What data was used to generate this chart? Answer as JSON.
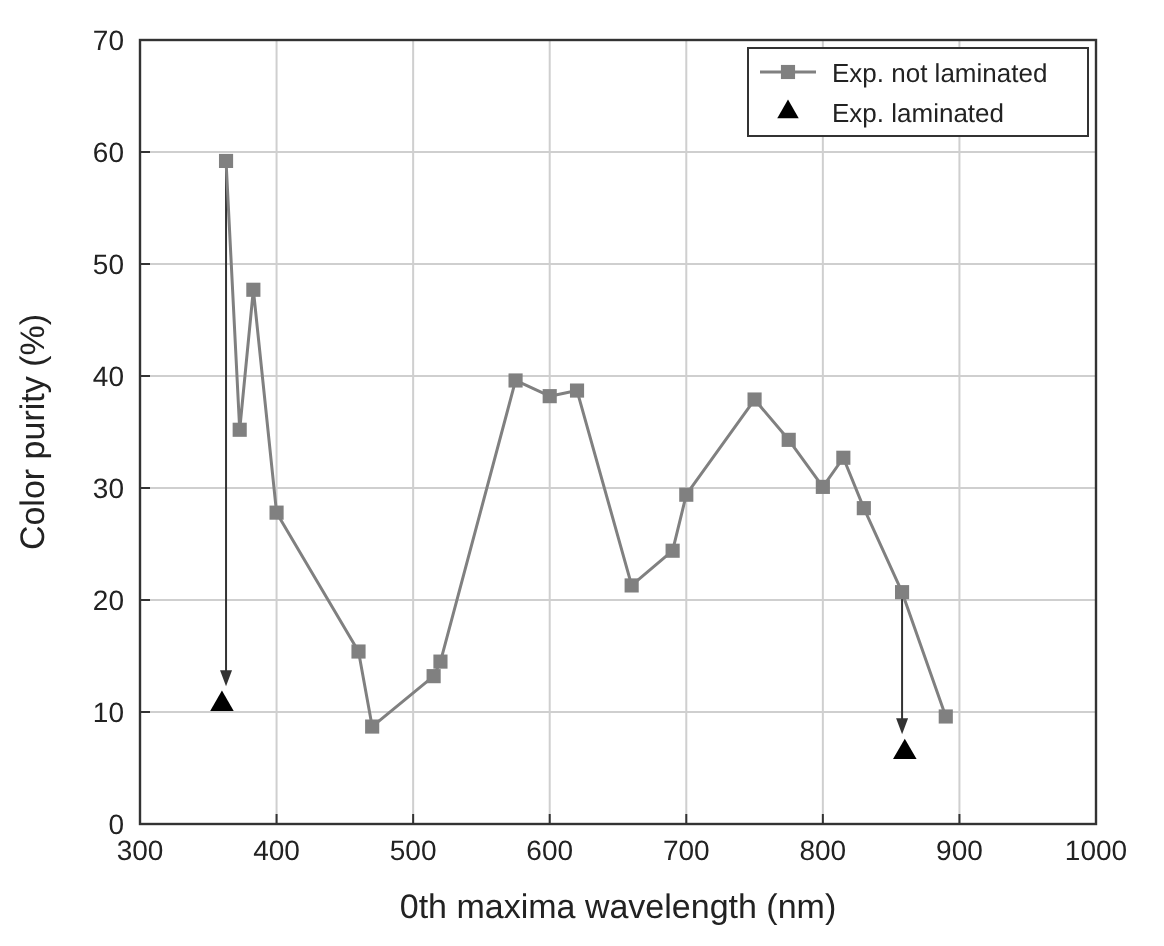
{
  "chart_data": {
    "type": "line",
    "xlabel": "0th maxima wavelength (nm)",
    "ylabel": "Color purity (%)",
    "xlim": [
      300,
      1000
    ],
    "xticks": [
      300,
      400,
      500,
      600,
      700,
      800,
      900,
      1000
    ],
    "ylim": [
      0,
      70
    ],
    "yticks": [
      0,
      10,
      20,
      30,
      40,
      50,
      60,
      70
    ],
    "grid": true,
    "legend": "top right",
    "series": [
      {
        "name": "Exp. not laminated",
        "marker": "square",
        "color": "#808080",
        "x": [
          363,
          373,
          383,
          400,
          460,
          470,
          515,
          520,
          575,
          600,
          620,
          660,
          690,
          700,
          750,
          775,
          800,
          815,
          830,
          858,
          890
        ],
        "values": [
          59.2,
          35.2,
          47.7,
          27.8,
          15.4,
          8.7,
          13.2,
          14.5,
          39.6,
          38.2,
          38.7,
          21.3,
          24.4,
          29.4,
          37.9,
          34.3,
          30.1,
          32.7,
          28.2,
          20.7,
          9.6
        ]
      },
      {
        "name": "Exp. laminated",
        "type": "scatter",
        "marker": "triangle",
        "color": "#000000",
        "x": [
          360,
          860
        ],
        "values": [
          10.7,
          6.4
        ]
      }
    ]
  }
}
